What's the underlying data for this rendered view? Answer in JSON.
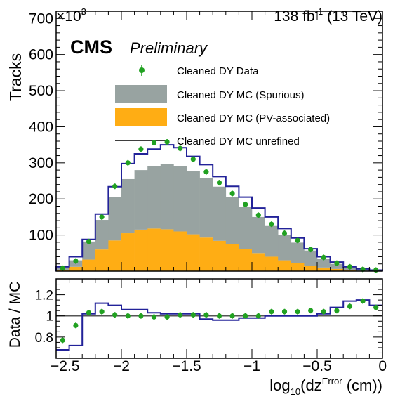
{
  "chart_data": {
    "type": "histogram",
    "lumi_label": "138 fb",
    "lumi_sup": "-1",
    "lumi_energy": " (13 TeV)",
    "experiment": "CMS",
    "status": "Preliminary",
    "top_panel": {
      "ylabel": "Tracks",
      "y_multiplier": "×10",
      "y_multiplier_exp": "3",
      "ylim": [
        0,
        720
      ],
      "yticks": [
        100,
        200,
        300,
        400,
        500,
        600,
        700
      ],
      "ytick_labels": [
        "100",
        "200",
        "300",
        "400",
        "500",
        "600",
        "700"
      ]
    },
    "ratio_panel": {
      "ylabel": "Data / MC",
      "ylim": [
        0.6,
        1.35
      ],
      "yticks": [
        0.8,
        1,
        1.2
      ],
      "ytick_labels": [
        "0.8",
        "1",
        "1.2"
      ],
      "reference_line": 1.0
    },
    "xlabel_main": "log",
    "xlabel_sub": "10",
    "xlabel_open": "(dz",
    "xlabel_sup": "Error",
    "xlabel_close": " (cm))",
    "xlim": [
      -2.5,
      0
    ],
    "xticks": [
      -2.5,
      -2,
      -1.5,
      -1,
      -0.5,
      0
    ],
    "xtick_labels": [
      "−2.5",
      "−2",
      "−1.5",
      "−1",
      "−0.5",
      "0"
    ],
    "bin_width": 0.1,
    "bin_centers": [
      -2.45,
      -2.35,
      -2.25,
      -2.15,
      -2.05,
      -1.95,
      -1.85,
      -1.75,
      -1.65,
      -1.55,
      -1.45,
      -1.35,
      -1.25,
      -1.15,
      -1.05,
      -0.95,
      -0.85,
      -0.75,
      -0.65,
      -0.55,
      -0.45,
      -0.35,
      -0.25,
      -0.15,
      -0.05
    ],
    "series": [
      {
        "name": "Cleaned DY Data",
        "style": "points",
        "color": "#21a121",
        "values": [
          8,
          28,
          82,
          150,
          235,
          300,
          338,
          356,
          358,
          340,
          310,
          275,
          245,
          215,
          185,
          155,
          130,
          105,
          85,
          60,
          38,
          22,
          12,
          5,
          3
        ]
      },
      {
        "name": "Cleaned DY MC (Spurious)",
        "style": "stack",
        "color": "#98a3a1",
        "values": [
          4,
          18,
          50,
          82,
          120,
          150,
          165,
          172,
          180,
          180,
          175,
          165,
          150,
          132,
          117,
          100,
          85,
          70,
          57,
          42,
          24,
          14,
          7,
          3,
          2
        ]
      },
      {
        "name": "Cleaned DY MC (PV-associated)",
        "style": "stack",
        "color": "#ffad14",
        "values": [
          4,
          12,
          32,
          60,
          85,
          105,
          115,
          118,
          116,
          110,
          102,
          93,
          84,
          74,
          62,
          50,
          40,
          30,
          22,
          15,
          10,
          6,
          3,
          1,
          1
        ]
      },
      {
        "name": "Cleaned DY MC unrefined",
        "style": "step",
        "color": "#222299",
        "values": [
          12,
          40,
          88,
          158,
          234,
          298,
          325,
          338,
          350,
          342,
          318,
          295,
          262,
          235,
          205,
          175,
          150,
          118,
          92,
          62,
          40,
          25,
          12,
          6,
          3
        ]
      }
    ],
    "ratio_series": [
      {
        "name": "Cleaned DY Data / MC",
        "style": "points",
        "color": "#21a121",
        "values": [
          0.77,
          0.91,
          1.03,
          1.04,
          1.01,
          1.0,
          1.0,
          0.99,
          0.99,
          1.01,
          1.01,
          1.01,
          1.0,
          1.0,
          1.0,
          1.0,
          1.04,
          1.04,
          1.04,
          1.05,
          1.04,
          1.05,
          1.09,
          1.14,
          1.08
        ]
      },
      {
        "name": "Cleaned DY MC unrefined / MC",
        "style": "step",
        "color": "#222299",
        "values": [
          0.68,
          0.72,
          1.02,
          1.12,
          1.1,
          1.06,
          1.06,
          1.03,
          1.02,
          1.02,
          1.02,
          0.97,
          0.96,
          0.96,
          0.98,
          0.98,
          1.0,
          1.0,
          1.0,
          1.0,
          1.02,
          1.08,
          1.14,
          1.15,
          1.1
        ]
      }
    ]
  }
}
